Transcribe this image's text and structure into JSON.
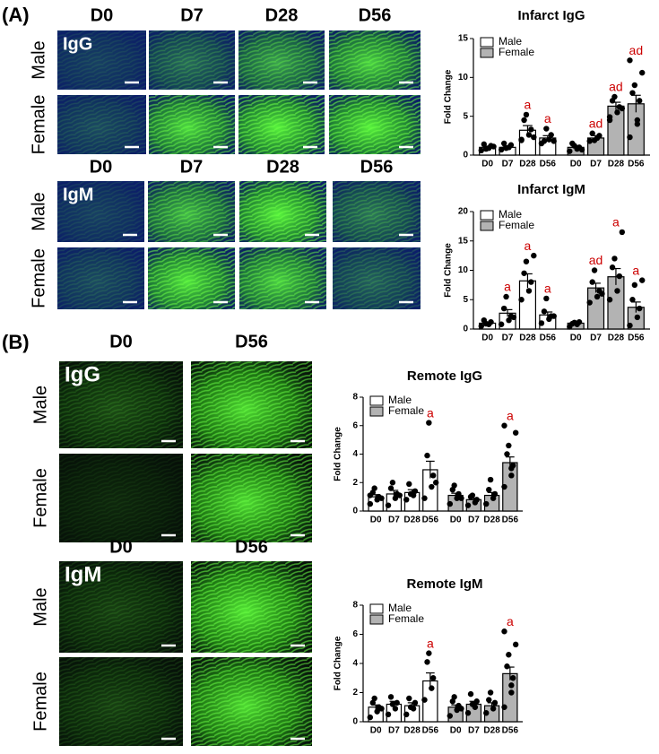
{
  "panel_a": {
    "label": "(A)",
    "blocks": [
      {
        "stain": "IgG",
        "columns": [
          "D0",
          "D7",
          "D28",
          "D56"
        ],
        "rows": [
          "Male",
          "Female"
        ]
      },
      {
        "stain": "IgM",
        "columns": [
          "D0",
          "D7",
          "D28",
          "D56"
        ],
        "rows": [
          "Male",
          "Female"
        ]
      }
    ]
  },
  "panel_b": {
    "label": "(B)",
    "blocks": [
      {
        "stain": "IgG",
        "columns": [
          "D0",
          "D56"
        ],
        "rows": [
          "Male",
          "Female"
        ]
      },
      {
        "stain": "IgM",
        "columns": [
          "D0",
          "D56"
        ],
        "rows": [
          "Male",
          "Female"
        ]
      }
    ]
  },
  "chart_data": [
    {
      "type": "bar",
      "title": "Infarct IgG",
      "ylabel": "Fold Change",
      "categories": [
        "D0",
        "D7",
        "D28",
        "D56"
      ],
      "ylim": [
        0,
        15
      ],
      "yticks": [
        0,
        5,
        10,
        15
      ],
      "annotation_color": "#cc0000",
      "series": [
        {
          "name": "Male",
          "color": "#ffffff",
          "values": [
            1.0,
            1.0,
            3.2,
            2.2
          ],
          "errors": [
            0.15,
            0.15,
            0.6,
            0.3
          ],
          "points": [
            [
              0.6,
              0.9,
              1.2,
              1.4,
              0.8,
              1.1
            ],
            [
              0.7,
              1.0,
              1.3,
              1.5,
              0.9
            ],
            [
              2.0,
              2.6,
              3.3,
              4.5,
              5.2,
              2.3,
              1.9
            ],
            [
              1.5,
              2.0,
              2.6,
              1.8,
              3.4,
              1.8
            ]
          ],
          "annotations": [
            null,
            null,
            "a",
            "a"
          ]
        },
        {
          "name": "Female",
          "color": "#b3b3b3",
          "values": [
            1.0,
            2.2,
            6.3,
            6.6
          ],
          "errors": [
            0.2,
            0.3,
            0.5,
            1.1
          ],
          "points": [
            [
              0.5,
              0.8,
              1.0,
              1.5,
              1.2,
              0.7
            ],
            [
              1.8,
              2.2,
              2.5,
              2.8,
              1.9
            ],
            [
              4.5,
              5.5,
              6.2,
              7.0,
              7.5,
              6.0,
              4.9
            ],
            [
              2.3,
              4.0,
              7.0,
              8.0,
              9.0,
              10.6,
              12.2,
              4.5
            ]
          ],
          "annotations": [
            null,
            "ad",
            "ad",
            "ad"
          ]
        }
      ]
    },
    {
      "type": "bar",
      "title": "Infarct IgM",
      "ylabel": "Fold Change",
      "categories": [
        "D0",
        "D7",
        "D28",
        "D56"
      ],
      "ylim": [
        0,
        20
      ],
      "yticks": [
        0,
        5,
        10,
        15,
        20
      ],
      "annotation_color": "#cc0000",
      "series": [
        {
          "name": "Male",
          "color": "#ffffff",
          "values": [
            1.0,
            2.7,
            8.2,
            2.4
          ],
          "errors": [
            0.2,
            0.6,
            1.2,
            0.5
          ],
          "points": [
            [
              0.5,
              0.8,
              1.2,
              1.5,
              0.9
            ],
            [
              0.8,
              1.5,
              2.2,
              3.5,
              5.5,
              2.0
            ],
            [
              5.0,
              6.5,
              8.0,
              9.5,
              11.5,
              12.5
            ],
            [
              1.0,
              1.7,
              2.2,
              3.0,
              5.2,
              2.2
            ]
          ],
          "annotations": [
            null,
            "a",
            "a",
            "a"
          ]
        },
        {
          "name": "Female",
          "color": "#b3b3b3",
          "values": [
            1.0,
            7.0,
            8.9,
            3.7
          ],
          "errors": [
            0.2,
            0.8,
            1.4,
            0.9
          ],
          "points": [
            [
              0.4,
              0.8,
              1.2,
              0.9,
              1.1
            ],
            [
              4.5,
              5.5,
              6.5,
              8.0,
              10.0,
              6.0
            ],
            [
              5.0,
              6.5,
              9.0,
              10.5,
              12.0,
              16.5
            ],
            [
              0.6,
              2.0,
              3.5,
              5.0,
              7.5,
              8.3
            ]
          ],
          "annotations": [
            null,
            "ad",
            "a",
            "a"
          ]
        }
      ]
    },
    {
      "type": "bar",
      "title": "Remote IgG",
      "ylabel": "Fold Change",
      "categories": [
        "D0",
        "D7",
        "D28",
        "D56"
      ],
      "ylim": [
        0,
        8
      ],
      "yticks": [
        0,
        2,
        4,
        6,
        8
      ],
      "annotation_color": "#cc0000",
      "series": [
        {
          "name": "Male",
          "color": "#ffffff",
          "values": [
            1.0,
            1.2,
            1.3,
            2.9
          ],
          "errors": [
            0.15,
            0.25,
            0.2,
            0.6
          ],
          "points": [
            [
              0.5,
              0.8,
              1.0,
              1.3,
              1.6,
              0.9,
              1.1
            ],
            [
              0.4,
              0.9,
              1.2,
              1.6,
              2.0,
              1.1
            ],
            [
              0.8,
              1.1,
              1.4,
              1.9,
              1.2
            ],
            [
              0.9,
              1.7,
              2.5,
              3.9,
              6.2,
              2.0
            ]
          ],
          "annotations": [
            null,
            null,
            null,
            "a"
          ]
        },
        {
          "name": "Female",
          "color": "#b3b3b3",
          "values": [
            1.1,
            0.8,
            1.1,
            3.4
          ],
          "errors": [
            0.15,
            0.1,
            0.2,
            0.4
          ],
          "points": [
            [
              0.5,
              0.9,
              1.2,
              1.5,
              1.8,
              0.9
            ],
            [
              0.4,
              0.6,
              0.8,
              1.0,
              1.1
            ],
            [
              0.5,
              0.9,
              1.2,
              1.5,
              2.2
            ],
            [
              1.7,
              2.5,
              3.2,
              4.0,
              4.6,
              5.5,
              6.0,
              3.0
            ]
          ],
          "annotations": [
            null,
            null,
            null,
            "a"
          ]
        }
      ]
    },
    {
      "type": "bar",
      "title": "Remote IgM",
      "ylabel": "Fold Change",
      "categories": [
        "D0",
        "D7",
        "D28",
        "D56"
      ],
      "ylim": [
        0,
        8
      ],
      "yticks": [
        0,
        2,
        4,
        6,
        8
      ],
      "annotation_color": "#cc0000",
      "series": [
        {
          "name": "Male",
          "color": "#ffffff",
          "values": [
            1.0,
            1.2,
            1.1,
            2.8
          ],
          "errors": [
            0.15,
            0.2,
            0.2,
            0.55
          ],
          "points": [
            [
              0.3,
              0.7,
              1.0,
              1.3,
              1.6,
              0.9
            ],
            [
              0.5,
              0.9,
              1.3,
              1.7,
              1.2
            ],
            [
              0.5,
              0.9,
              1.3,
              1.6,
              1.0
            ],
            [
              1.5,
              2.3,
              3.0,
              4.1,
              4.7
            ]
          ],
          "annotations": [
            null,
            null,
            null,
            "a"
          ]
        },
        {
          "name": "Female",
          "color": "#b3b3b3",
          "values": [
            1.0,
            1.2,
            1.1,
            3.3
          ],
          "errors": [
            0.15,
            0.2,
            0.2,
            0.45
          ],
          "points": [
            [
              0.4,
              0.8,
              1.1,
              1.4,
              1.7,
              0.9
            ],
            [
              0.6,
              1.0,
              1.4,
              1.9,
              1.2
            ],
            [
              0.6,
              0.9,
              1.3,
              1.5,
              2.0
            ],
            [
              1.0,
              2.0,
              3.0,
              3.8,
              4.6,
              5.3,
              6.2,
              2.5
            ]
          ],
          "annotations": [
            null,
            null,
            null,
            "a"
          ]
        }
      ]
    }
  ]
}
